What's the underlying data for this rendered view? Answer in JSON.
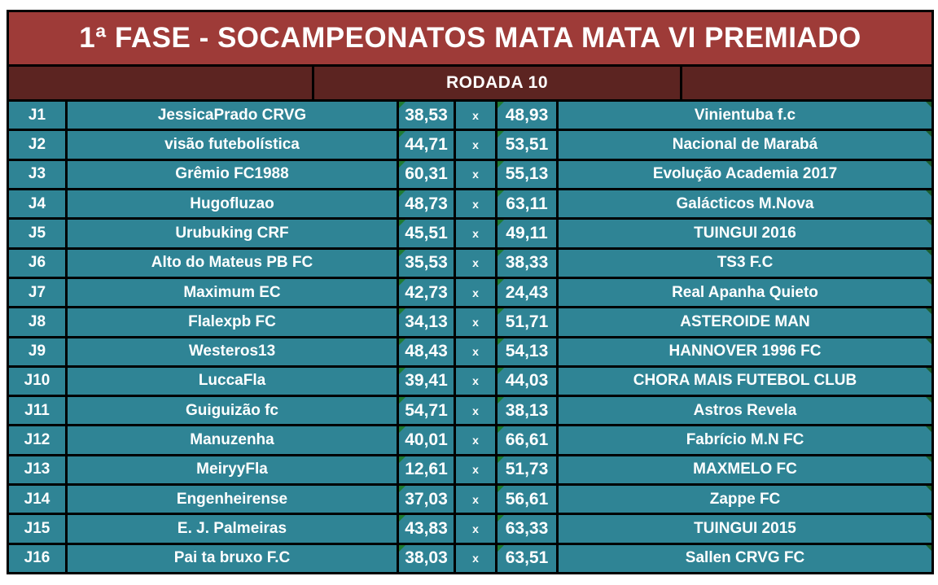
{
  "title": "1ª FASE - SOCAMPEONATOS MATA MATA VI PREMIADO",
  "round_header": "RODADA 10",
  "separator_label": "x",
  "colors": {
    "title_bg": "#9E3B38",
    "band_bg": "#5C2421",
    "cell_bg": "#2F8495",
    "border_color": "#000000",
    "text_color": "#FFFFFF",
    "indicator_green": "#1E7B33",
    "corner_green": "#1C5E2D",
    "page_bg": "#FFFFFF"
  },
  "matches": [
    {
      "id": "J1",
      "home": "JessicaPrado CRVG",
      "home_score": "38,53",
      "away_score": "48,93",
      "away": "Vinientuba f.c"
    },
    {
      "id": "J2",
      "home": "visão futebolística",
      "home_score": "44,71",
      "away_score": "53,51",
      "away": "Nacional de Marabá"
    },
    {
      "id": "J3",
      "home": "Grêmio FC1988",
      "home_score": "60,31",
      "away_score": "55,13",
      "away": "Evolução Academia 2017"
    },
    {
      "id": "J4",
      "home": "Hugofluzao",
      "home_score": "48,73",
      "away_score": "63,11",
      "away": "Galácticos M.Nova"
    },
    {
      "id": "J5",
      "home": "Urubuking CRF",
      "home_score": "45,51",
      "away_score": "49,11",
      "away": "TUINGUI 2016"
    },
    {
      "id": "J6",
      "home": "Alto do Mateus PB FC",
      "home_score": "35,53",
      "away_score": "38,33",
      "away": "TS3 F.C"
    },
    {
      "id": "J7",
      "home": "Maximum EC",
      "home_score": "42,73",
      "away_score": "24,43",
      "away": "Real Apanha Quieto"
    },
    {
      "id": "J8",
      "home": "Flalexpb FC",
      "home_score": "34,13",
      "away_score": "51,71",
      "away": "ASTEROIDE MAN"
    },
    {
      "id": "J9",
      "home": "Westeros13",
      "home_score": "48,43",
      "away_score": "54,13",
      "away": "HANNOVER 1996 FC"
    },
    {
      "id": "J10",
      "home": "LuccaFla",
      "home_score": "39,41",
      "away_score": "44,03",
      "away": "CHORA MAIS FUTEBOL CLUB"
    },
    {
      "id": "J11",
      "home": "Guiguizão fc",
      "home_score": "54,71",
      "away_score": "38,13",
      "away": "Astros Revela"
    },
    {
      "id": "J12",
      "home": "Manuzenha",
      "home_score": "40,01",
      "away_score": "66,61",
      "away": "Fabrício M.N FC"
    },
    {
      "id": "J13",
      "home": "MeiryyFla",
      "home_score": "12,61",
      "away_score": "51,73",
      "away": "MAXMELO FC"
    },
    {
      "id": "J14",
      "home": "Engenheirense",
      "home_score": "37,03",
      "away_score": "56,61",
      "away": "Zappe FC"
    },
    {
      "id": "J15",
      "home": "E. J. Palmeiras",
      "home_score": "43,83",
      "away_score": "63,33",
      "away": "TUINGUI 2015"
    },
    {
      "id": "J16",
      "home": "Pai ta bruxo F.C",
      "home_score": "38,03",
      "away_score": "63,51",
      "away": "Sallen CRVG FC"
    }
  ]
}
